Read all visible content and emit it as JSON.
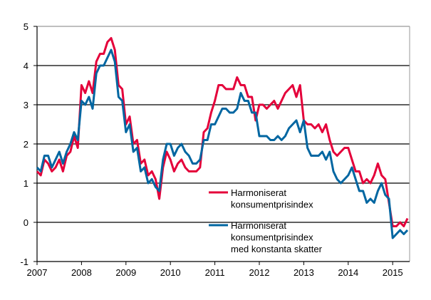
{
  "chart_data": {
    "type": "line",
    "title": "",
    "xlabel": "",
    "ylabel": "",
    "ylim": [
      -1,
      5
    ],
    "yticks": [
      "-1",
      "0",
      "1",
      "2",
      "3",
      "4",
      "5"
    ],
    "xticks": [
      "2007",
      "2008",
      "2009",
      "2010",
      "2011",
      "2012",
      "2013",
      "2014",
      "2015"
    ],
    "x_start": "2007-01",
    "x_frequency": "monthly",
    "grid": "horizontal",
    "legend_placement": "lower-middle-right",
    "series": [
      {
        "name": "Harmoniserat konsumentprisindex",
        "legend_lines": [
          "Harmoniserat",
          "konsumentprisindex"
        ],
        "color": "#e4003a",
        "values": [
          1.3,
          1.2,
          1.6,
          1.5,
          1.3,
          1.4,
          1.6,
          1.3,
          1.7,
          1.8,
          2.2,
          1.9,
          3.5,
          3.3,
          3.6,
          3.3,
          4.1,
          4.3,
          4.3,
          4.6,
          4.7,
          4.4,
          3.5,
          3.4,
          2.5,
          2.7,
          2.0,
          2.1,
          1.5,
          1.6,
          1.2,
          1.3,
          1.1,
          0.6,
          1.4,
          1.8,
          1.6,
          1.3,
          1.5,
          1.6,
          1.4,
          1.3,
          1.3,
          1.3,
          1.4,
          2.3,
          2.4,
          2.8,
          3.1,
          3.5,
          3.5,
          3.4,
          3.4,
          3.4,
          3.7,
          3.5,
          3.5,
          3.2,
          3.2,
          2.6,
          3.0,
          3.0,
          2.9,
          3.0,
          3.1,
          2.9,
          3.1,
          3.3,
          3.4,
          3.5,
          3.2,
          3.5,
          2.6,
          2.5,
          2.5,
          2.4,
          2.5,
          2.3,
          2.5,
          2.1,
          1.8,
          1.7,
          1.8,
          1.9,
          1.9,
          1.6,
          1.3,
          1.3,
          1.0,
          1.1,
          1.0,
          1.2,
          1.5,
          1.2,
          1.1,
          0.5,
          -0.1,
          -0.1,
          0.0,
          -0.1,
          0.1
        ]
      },
      {
        "name": "Harmoniserat konsumentprisindex med konstanta skatter",
        "legend_lines": [
          "Harmoniserat",
          "konsumentprisindex",
          "med konstanta skatter"
        ],
        "color": "#0066a1",
        "values": [
          1.4,
          1.3,
          1.7,
          1.7,
          1.4,
          1.6,
          1.8,
          1.5,
          1.8,
          2.0,
          2.3,
          2.1,
          3.1,
          3.0,
          3.2,
          2.9,
          3.8,
          4.0,
          4.0,
          4.2,
          4.4,
          4.1,
          3.2,
          3.1,
          2.3,
          2.5,
          1.8,
          1.9,
          1.3,
          1.4,
          1.0,
          1.1,
          0.9,
          0.8,
          1.6,
          2.0,
          2.0,
          1.7,
          1.9,
          2.0,
          1.8,
          1.7,
          1.5,
          1.5,
          1.6,
          2.1,
          2.1,
          2.5,
          2.5,
          2.7,
          2.9,
          2.9,
          2.8,
          2.8,
          2.9,
          3.3,
          3.1,
          3.1,
          2.8,
          2.8,
          2.2,
          2.2,
          2.2,
          2.1,
          2.1,
          2.2,
          2.1,
          2.2,
          2.4,
          2.5,
          2.6,
          2.3,
          2.6,
          1.9,
          1.7,
          1.7,
          1.7,
          1.8,
          1.6,
          1.8,
          1.3,
          1.1,
          1.0,
          1.1,
          1.2,
          1.4,
          1.1,
          0.8,
          0.8,
          0.5,
          0.6,
          0.5,
          0.8,
          1.0,
          0.7,
          0.6,
          -0.4,
          -0.3,
          -0.2,
          -0.3,
          -0.2
        ]
      }
    ]
  }
}
